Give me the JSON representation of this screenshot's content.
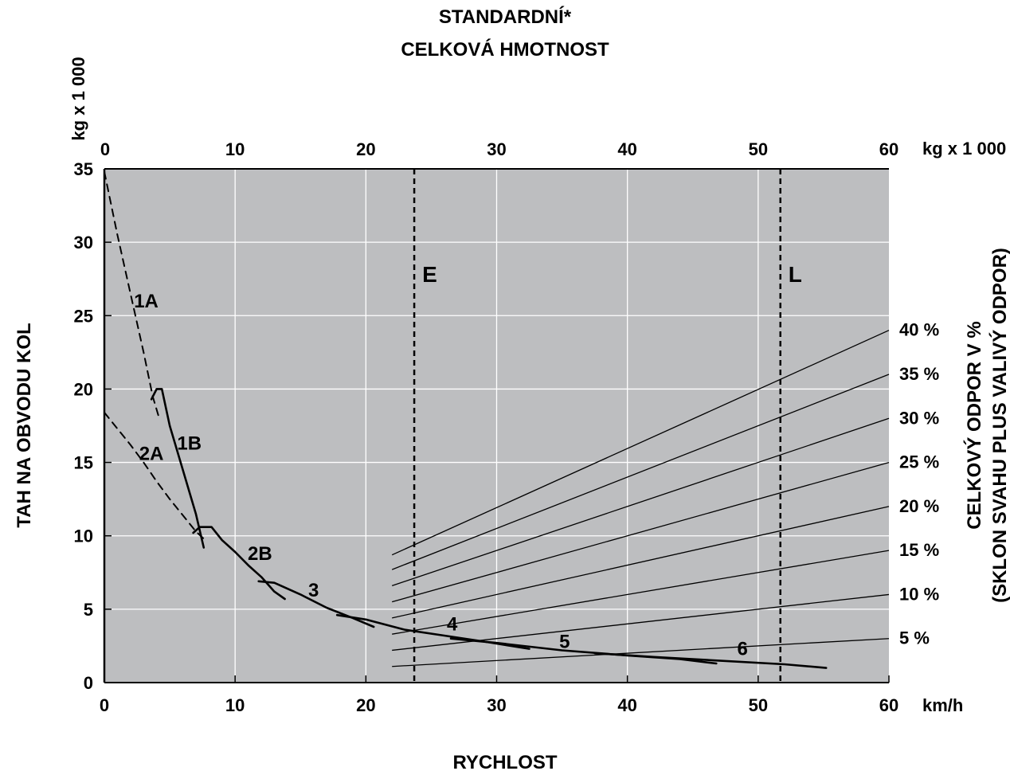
{
  "chart_data": {
    "type": "line",
    "title_top": [
      "STANDARDNÍ*",
      "CELKOVÁ HMOTNOST"
    ],
    "top_axis": {
      "label": "kg x 1 000",
      "label_right": "kg x 1 000",
      "range": [
        0,
        60
      ],
      "ticks": [
        0,
        10,
        20,
        30,
        40,
        50,
        60
      ]
    },
    "xaxis": {
      "label": "RYCHLOST",
      "unit": "km/h",
      "range": [
        0,
        60
      ],
      "ticks": [
        0,
        10,
        20,
        30,
        40,
        50,
        60
      ]
    },
    "yaxis": {
      "label": "TAH NA OBVODU KOL",
      "range": [
        0,
        35
      ],
      "ticks": [
        0,
        5,
        10,
        15,
        20,
        25,
        30,
        35
      ]
    },
    "right_axis": {
      "label_lines": [
        "CELKOVÝ ODPOR V %",
        "(SKLON SVAHU PLUS VALIVÝ ODPOR)"
      ]
    },
    "grid": true,
    "background": "#bdbec0",
    "vertical_markers": [
      {
        "label": "E",
        "x": 23.7
      },
      {
        "label": "L",
        "x": 51.7
      }
    ],
    "resistance_lines": [
      {
        "label": "40 %",
        "x_start": 22,
        "y_start": 8.7,
        "y_end": 24
      },
      {
        "label": "35 %",
        "x_start": 22,
        "y_start": 7.7,
        "y_end": 21
      },
      {
        "label": "30 %",
        "x_start": 22,
        "y_start": 6.6,
        "y_end": 18
      },
      {
        "label": "25 %",
        "x_start": 22,
        "y_start": 5.5,
        "y_end": 15
      },
      {
        "label": "20 %",
        "x_start": 22,
        "y_start": 4.4,
        "y_end": 12
      },
      {
        "label": "15 %",
        "x_start": 22,
        "y_start": 3.3,
        "y_end": 9
      },
      {
        "label": "10 %",
        "x_start": 22,
        "y_start": 2.2,
        "y_end": 6
      },
      {
        "label": "5 %",
        "x_start": 22,
        "y_start": 1.1,
        "y_end": 3
      }
    ],
    "series": [
      {
        "name": "1A",
        "dashed": true,
        "points": [
          [
            0,
            34.8
          ],
          [
            1,
            30.5
          ],
          [
            2,
            26.5
          ],
          [
            3,
            22.5
          ],
          [
            3.7,
            19.5
          ],
          [
            4.2,
            18
          ]
        ]
      },
      {
        "name": "1B",
        "dashed": false,
        "points": [
          [
            3.6,
            19.3
          ],
          [
            4.0,
            20.0
          ],
          [
            4.4,
            20.0
          ],
          [
            5.0,
            17.5
          ],
          [
            6.0,
            14.5
          ],
          [
            7.0,
            11.5
          ],
          [
            7.6,
            9.2
          ]
        ]
      },
      {
        "name": "2A",
        "dashed": true,
        "points": [
          [
            0,
            18.4
          ],
          [
            1,
            17.3
          ],
          [
            2,
            16.2
          ],
          [
            3,
            15.0
          ],
          [
            4,
            13.7
          ],
          [
            5,
            12.5
          ],
          [
            6,
            11.4
          ],
          [
            7,
            10.3
          ],
          [
            7.6,
            9.8
          ]
        ]
      },
      {
        "name": "2B",
        "dashed": false,
        "points": [
          [
            6.8,
            10.2
          ],
          [
            7.3,
            10.6
          ],
          [
            8.2,
            10.6
          ],
          [
            9.0,
            9.7
          ],
          [
            10.0,
            8.9
          ],
          [
            11.0,
            8.0
          ],
          [
            12.0,
            7.2
          ],
          [
            13.0,
            6.2
          ],
          [
            13.8,
            5.7
          ]
        ]
      },
      {
        "name": "3",
        "dashed": false,
        "points": [
          [
            11.8,
            6.9
          ],
          [
            13.0,
            6.8
          ],
          [
            15.0,
            6.0
          ],
          [
            17.0,
            5.1
          ],
          [
            19.0,
            4.4
          ],
          [
            20.6,
            3.8
          ]
        ]
      },
      {
        "name": "4",
        "dashed": false,
        "points": [
          [
            17.8,
            4.6
          ],
          [
            20.0,
            4.3
          ],
          [
            23.0,
            3.6
          ],
          [
            26.0,
            3.2
          ],
          [
            29.0,
            2.8
          ],
          [
            32.5,
            2.3
          ]
        ]
      },
      {
        "name": "5",
        "dashed": false,
        "points": [
          [
            26.5,
            3.0
          ],
          [
            30.0,
            2.7
          ],
          [
            35.0,
            2.2
          ],
          [
            40.0,
            1.85
          ],
          [
            44.0,
            1.6
          ],
          [
            46.8,
            1.3
          ]
        ]
      },
      {
        "name": "6",
        "dashed": false,
        "points": [
          [
            37.5,
            2.0
          ],
          [
            42.0,
            1.75
          ],
          [
            47.0,
            1.5
          ],
          [
            52.0,
            1.25
          ],
          [
            55.2,
            1.0
          ]
        ]
      }
    ],
    "series_labels": [
      {
        "text": "1A",
        "x": 3.2,
        "y": 26.0
      },
      {
        "text": "1B",
        "x": 6.5,
        "y": 16.3
      },
      {
        "text": "2A",
        "x": 3.6,
        "y": 15.6
      },
      {
        "text": "2B",
        "x": 11.9,
        "y": 8.8
      },
      {
        "text": "3",
        "x": 16.0,
        "y": 6.3
      },
      {
        "text": "4",
        "x": 26.6,
        "y": 4.0
      },
      {
        "text": "5",
        "x": 35.2,
        "y": 2.8
      },
      {
        "text": "6",
        "x": 48.8,
        "y": 2.3
      }
    ]
  }
}
